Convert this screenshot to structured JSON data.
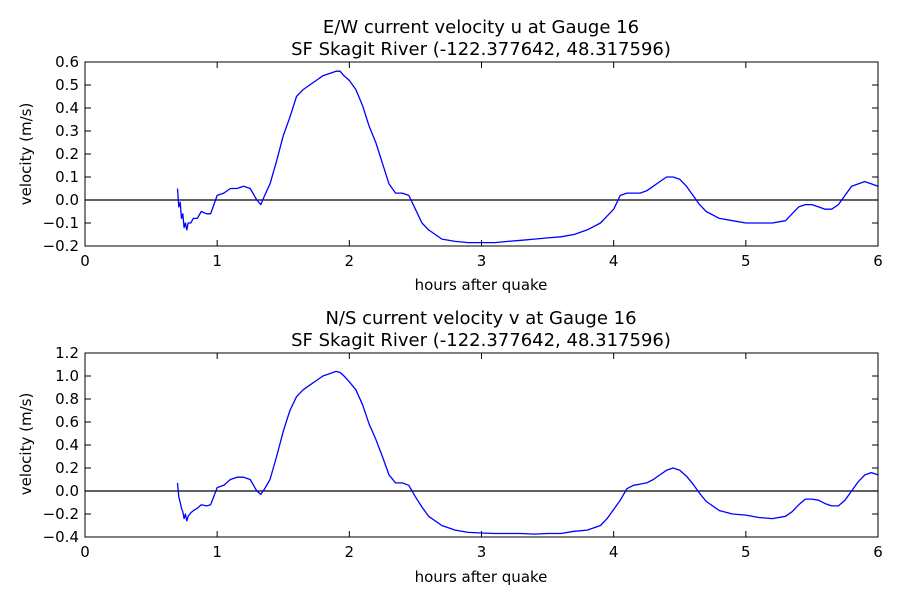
{
  "chart_data": [
    {
      "type": "line",
      "title": "E/W current velocity u at Gauge 16",
      "subtitle": "SF Skagit River  (-122.377642, 48.317596)",
      "xlabel": "hours after quake",
      "ylabel": "velocity (m/s)",
      "xlim": [
        0,
        6
      ],
      "ylim": [
        -0.2,
        0.6
      ],
      "xticks": [
        0,
        1,
        2,
        3,
        4,
        5,
        6
      ],
      "yticks": [
        -0.2,
        -0.1,
        0.0,
        0.1,
        0.2,
        0.3,
        0.4,
        0.5,
        0.6
      ],
      "ytick_labels": [
        "−0.2",
        "−0.1",
        "0.0",
        "0.1",
        "0.2",
        "0.3",
        "0.4",
        "0.5",
        "0.6"
      ],
      "grid": false,
      "zero_line": 0,
      "colors": {
        "series": "#0000ff",
        "zero_line": "#000000"
      },
      "series": [
        {
          "x": [
            0.7,
            0.71,
            0.72,
            0.73,
            0.74,
            0.75,
            0.76,
            0.77,
            0.78,
            0.8,
            0.82,
            0.85,
            0.88,
            0.92,
            0.95,
            1.0,
            1.05,
            1.1,
            1.15,
            1.2,
            1.25,
            1.3,
            1.33,
            1.36,
            1.4,
            1.45,
            1.5,
            1.55,
            1.6,
            1.65,
            1.7,
            1.75,
            1.8,
            1.85,
            1.9,
            1.93,
            1.96,
            2.0,
            2.05,
            2.1,
            2.15,
            2.2,
            2.25,
            2.3,
            2.35,
            2.4,
            2.45,
            2.5,
            2.55,
            2.6,
            2.7,
            2.8,
            2.9,
            3.0,
            3.1,
            3.2,
            3.3,
            3.4,
            3.5,
            3.6,
            3.7,
            3.8,
            3.9,
            3.95,
            4.0,
            4.05,
            4.1,
            4.15,
            4.2,
            4.25,
            4.3,
            4.35,
            4.4,
            4.45,
            4.5,
            4.55,
            4.6,
            4.65,
            4.7,
            4.8,
            4.9,
            5.0,
            5.1,
            5.2,
            5.3,
            5.35,
            5.4,
            5.45,
            5.5,
            5.55,
            5.6,
            5.65,
            5.7,
            5.75,
            5.8,
            5.85,
            5.9,
            5.95,
            6.0
          ],
          "y": [
            0.05,
            -0.03,
            -0.01,
            -0.08,
            -0.06,
            -0.12,
            -0.1,
            -0.13,
            -0.1,
            -0.1,
            -0.08,
            -0.08,
            -0.05,
            -0.06,
            -0.06,
            0.02,
            0.03,
            0.05,
            0.05,
            0.06,
            0.05,
            0.0,
            -0.02,
            0.02,
            0.07,
            0.17,
            0.28,
            0.36,
            0.45,
            0.48,
            0.5,
            0.52,
            0.54,
            0.55,
            0.56,
            0.56,
            0.54,
            0.52,
            0.48,
            0.41,
            0.32,
            0.25,
            0.16,
            0.07,
            0.03,
            0.03,
            0.02,
            -0.04,
            -0.1,
            -0.13,
            -0.17,
            -0.18,
            -0.185,
            -0.185,
            -0.185,
            -0.18,
            -0.175,
            -0.17,
            -0.165,
            -0.16,
            -0.15,
            -0.13,
            -0.1,
            -0.07,
            -0.04,
            0.02,
            0.03,
            0.03,
            0.03,
            0.04,
            0.06,
            0.08,
            0.1,
            0.1,
            0.09,
            0.06,
            0.02,
            -0.02,
            -0.05,
            -0.08,
            -0.09,
            -0.1,
            -0.1,
            -0.1,
            -0.09,
            -0.06,
            -0.03,
            -0.02,
            -0.02,
            -0.03,
            -0.04,
            -0.04,
            -0.02,
            0.02,
            0.06,
            0.07,
            0.08,
            0.07,
            0.06
          ]
        }
      ]
    },
    {
      "type": "line",
      "title": "N/S current velocity v at Gauge 16",
      "subtitle": "SF Skagit River  (-122.377642, 48.317596)",
      "xlabel": "hours after quake",
      "ylabel": "velocity (m/s)",
      "xlim": [
        0,
        6
      ],
      "ylim": [
        -0.4,
        1.2
      ],
      "xticks": [
        0,
        1,
        2,
        3,
        4,
        5,
        6
      ],
      "yticks": [
        -0.4,
        -0.2,
        0.0,
        0.2,
        0.4,
        0.6,
        0.8,
        1.0,
        1.2
      ],
      "ytick_labels": [
        "−0.4",
        "−0.2",
        "0.0",
        "0.2",
        "0.4",
        "0.6",
        "0.8",
        "1.0",
        "1.2"
      ],
      "grid": false,
      "zero_line": 0,
      "colors": {
        "series": "#0000ff",
        "zero_line": "#000000"
      },
      "series": [
        {
          "x": [
            0.7,
            0.71,
            0.72,
            0.73,
            0.74,
            0.75,
            0.76,
            0.77,
            0.78,
            0.8,
            0.82,
            0.85,
            0.88,
            0.92,
            0.95,
            1.0,
            1.05,
            1.1,
            1.15,
            1.2,
            1.25,
            1.3,
            1.33,
            1.36,
            1.4,
            1.45,
            1.5,
            1.55,
            1.6,
            1.65,
            1.7,
            1.75,
            1.8,
            1.85,
            1.9,
            1.93,
            1.96,
            2.0,
            2.05,
            2.1,
            2.15,
            2.2,
            2.25,
            2.3,
            2.35,
            2.4,
            2.45,
            2.5,
            2.55,
            2.6,
            2.7,
            2.8,
            2.9,
            3.0,
            3.1,
            3.2,
            3.3,
            3.4,
            3.5,
            3.6,
            3.7,
            3.8,
            3.9,
            3.95,
            4.0,
            4.05,
            4.1,
            4.15,
            4.2,
            4.25,
            4.3,
            4.35,
            4.4,
            4.45,
            4.5,
            4.55,
            4.6,
            4.65,
            4.7,
            4.8,
            4.9,
            5.0,
            5.1,
            5.2,
            5.3,
            5.35,
            5.4,
            5.45,
            5.5,
            5.55,
            5.6,
            5.65,
            5.7,
            5.75,
            5.8,
            5.85,
            5.9,
            5.95,
            6.0
          ],
          "y": [
            0.07,
            -0.05,
            -0.1,
            -0.15,
            -0.18,
            -0.24,
            -0.2,
            -0.26,
            -0.22,
            -0.19,
            -0.17,
            -0.15,
            -0.12,
            -0.13,
            -0.12,
            0.03,
            0.05,
            0.1,
            0.12,
            0.12,
            0.1,
            0.0,
            -0.03,
            0.02,
            0.1,
            0.3,
            0.52,
            0.7,
            0.82,
            0.88,
            0.92,
            0.96,
            1.0,
            1.02,
            1.04,
            1.03,
            1.0,
            0.95,
            0.88,
            0.75,
            0.58,
            0.45,
            0.3,
            0.14,
            0.07,
            0.07,
            0.05,
            -0.05,
            -0.14,
            -0.22,
            -0.3,
            -0.34,
            -0.36,
            -0.365,
            -0.37,
            -0.37,
            -0.37,
            -0.375,
            -0.37,
            -0.37,
            -0.35,
            -0.34,
            -0.3,
            -0.24,
            -0.16,
            -0.08,
            0.02,
            0.05,
            0.06,
            0.07,
            0.1,
            0.14,
            0.18,
            0.2,
            0.18,
            0.13,
            0.06,
            -0.02,
            -0.09,
            -0.17,
            -0.2,
            -0.21,
            -0.23,
            -0.24,
            -0.22,
            -0.18,
            -0.12,
            -0.07,
            -0.07,
            -0.08,
            -0.11,
            -0.13,
            -0.13,
            -0.08,
            0.0,
            0.08,
            0.14,
            0.16,
            0.14
          ]
        }
      ]
    }
  ]
}
